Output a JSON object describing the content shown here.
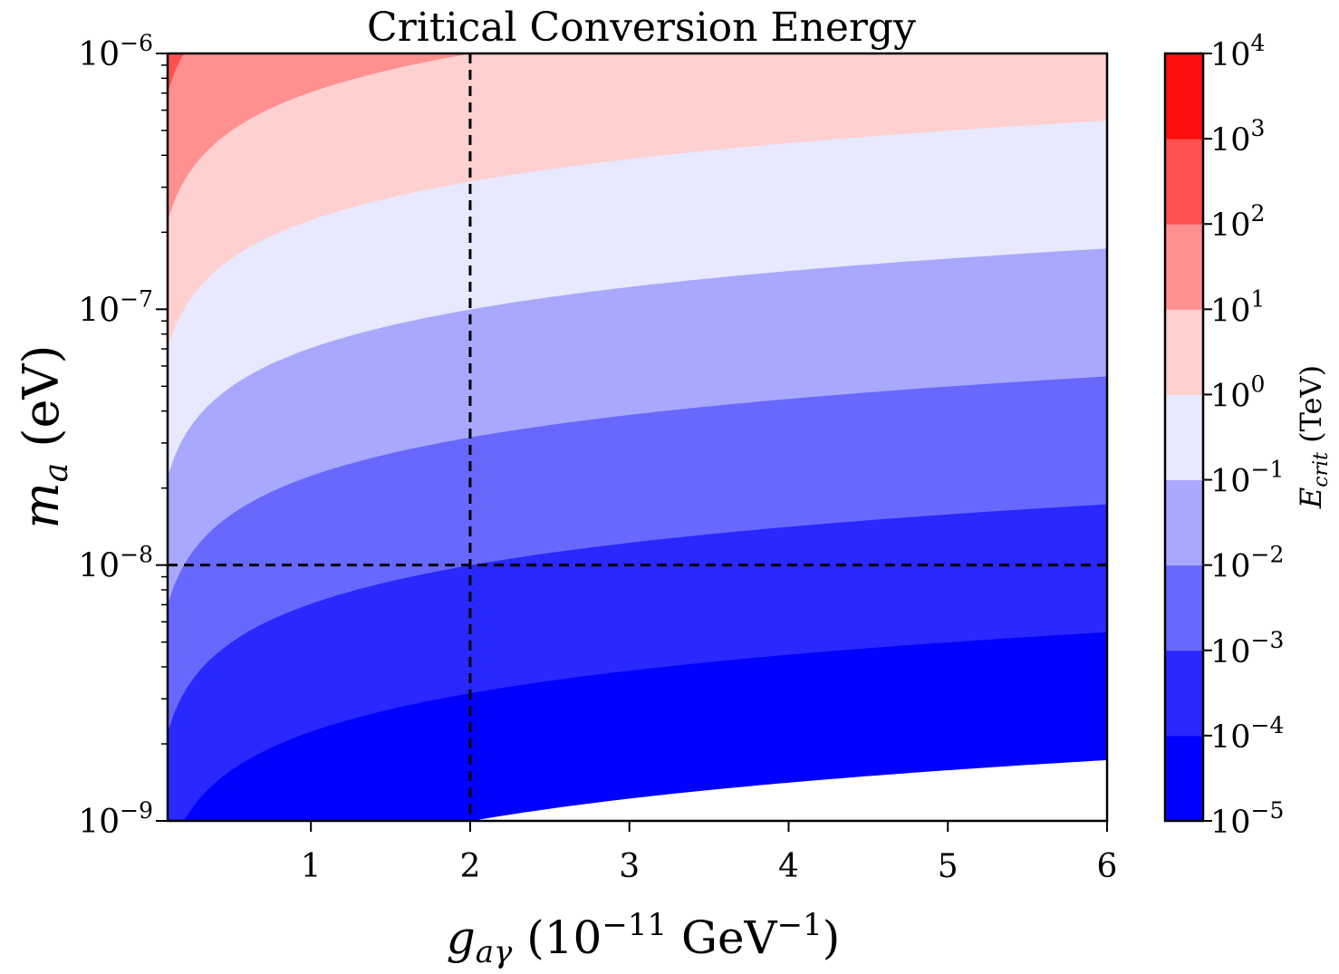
{
  "chart_data": {
    "type": "contourf",
    "title": "Critical Conversion Energy",
    "xlabel": {
      "base": "g",
      "sub": "aγ",
      "paren_open": " (10",
      "exp": "−11",
      "unit": " GeV",
      "unit_exp": "−1",
      "paren_close": ")"
    },
    "ylabel": {
      "base": "m",
      "sub": "a",
      "unit": " (eV)"
    },
    "colorbar_label": {
      "base": "E",
      "sub": "crit",
      "unit": " (TeV)"
    },
    "x": {
      "scale": "linear",
      "min": 0.1,
      "max": 6,
      "ticks": [
        1,
        2,
        3,
        4,
        5,
        6
      ],
      "tick_labels": [
        "1",
        "2",
        "3",
        "4",
        "5",
        "6"
      ]
    },
    "y": {
      "scale": "log",
      "min_exp": -9,
      "max_exp": -6,
      "ticks": [
        -9,
        -8,
        -7,
        -6
      ],
      "tick_labels": [
        {
          "base": "10",
          "exp": "−9"
        },
        {
          "base": "10",
          "exp": "−8"
        },
        {
          "base": "10",
          "exp": "−7"
        },
        {
          "base": "10",
          "exp": "−6"
        }
      ]
    },
    "model": {
      "formula": "E_crit_TeV = k * m_a^2 / g",
      "k": 20000000000000.0,
      "m_unit": "eV",
      "g_unit": "1e-11 GeV^-1"
    },
    "levels_exp": [
      -5,
      -4,
      -3,
      -2,
      -1,
      0,
      1,
      2,
      3,
      4
    ],
    "colorbar_tick_labels": [
      {
        "base": "10",
        "exp": "−5"
      },
      {
        "base": "10",
        "exp": "−4"
      },
      {
        "base": "10",
        "exp": "−3"
      },
      {
        "base": "10",
        "exp": "−2"
      },
      {
        "base": "10",
        "exp": "−1"
      },
      {
        "base": "10",
        "exp": "0"
      },
      {
        "base": "10",
        "exp": "1"
      },
      {
        "base": "10",
        "exp": "2"
      },
      {
        "base": "10",
        "exp": "3"
      },
      {
        "base": "10",
        "exp": "4"
      }
    ],
    "band_colors": [
      "#0000ff",
      "#2828ff",
      "#6868ff",
      "#a8a8ff",
      "#e8e8fe",
      "#ffd0d0",
      "#ff9090",
      "#ff5050",
      "#ff1010"
    ],
    "reference_lines": [
      {
        "axis": "x",
        "value": 2
      },
      {
        "axis": "y",
        "value_exp": -8
      }
    ]
  }
}
